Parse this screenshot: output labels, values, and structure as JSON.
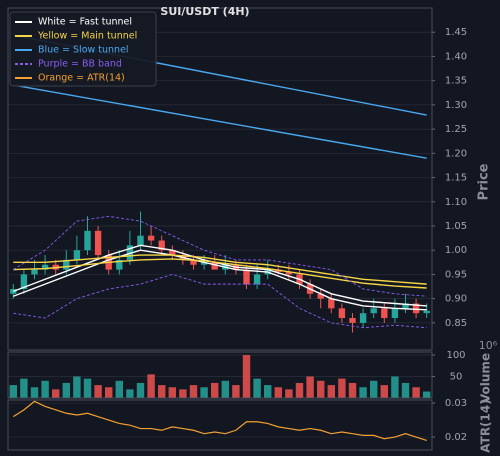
{
  "chart_data": {
    "type": "candlestick",
    "title": "SUI/USDT (4H)",
    "ylabel": "Price",
    "ylim": [
      0.794,
      1.5
    ],
    "yticks": [
      0.85,
      {
        "value": 0.9,
        "label": "0.90"
      },
      0.95,
      {
        "value": 1.0,
        "label": "1.00"
      },
      1.05,
      {
        "value": 1.1,
        "label": "1.10"
      },
      1.15,
      {
        "value": 1.2,
        "label": "1.20"
      },
      1.25,
      {
        "value": 1.3,
        "label": "1.30"
      },
      1.35,
      {
        "value": 1.4,
        "label": "1.40"
      },
      1.45
    ],
    "grid": true,
    "up_color": "#26a69a",
    "down_color": "#ef5350",
    "candles": {
      "open": [
        0.91,
        0.92,
        0.95,
        0.96,
        0.97,
        0.96,
        0.98,
        1.0,
        1.04,
        0.99,
        0.96,
        0.98,
        1.01,
        1.03,
        1.02,
        1.0,
        0.99,
        0.98,
        0.97,
        0.975,
        0.96,
        0.97,
        0.96,
        0.93,
        0.95,
        0.96,
        0.955,
        0.95,
        0.93,
        0.91,
        0.9,
        0.88,
        0.86,
        0.85,
        0.87,
        0.88,
        0.86,
        0.88,
        0.89,
        0.87
      ],
      "high": [
        0.93,
        0.96,
        0.98,
        0.99,
        0.98,
        1.0,
        1.03,
        1.07,
        1.05,
        1.0,
        1.0,
        1.04,
        1.08,
        1.05,
        1.03,
        1.01,
        1.0,
        0.99,
        0.99,
        0.99,
        0.99,
        0.98,
        0.97,
        0.97,
        0.98,
        0.97,
        0.97,
        0.96,
        0.94,
        0.92,
        0.91,
        0.89,
        0.87,
        0.88,
        0.9,
        0.89,
        0.9,
        0.91,
        0.9,
        0.89
      ],
      "low": [
        0.9,
        0.91,
        0.94,
        0.95,
        0.95,
        0.95,
        0.97,
        0.99,
        0.98,
        0.95,
        0.95,
        0.97,
        1.0,
        1.01,
        0.99,
        0.98,
        0.97,
        0.96,
        0.96,
        0.96,
        0.95,
        0.95,
        0.92,
        0.92,
        0.94,
        0.95,
        0.94,
        0.92,
        0.9,
        0.88,
        0.87,
        0.85,
        0.83,
        0.84,
        0.86,
        0.85,
        0.85,
        0.87,
        0.86,
        0.86
      ],
      "close": [
        0.92,
        0.95,
        0.96,
        0.97,
        0.96,
        0.98,
        1.0,
        1.04,
        0.99,
        0.96,
        0.98,
        1.01,
        1.03,
        1.02,
        1.0,
        0.99,
        0.98,
        0.97,
        0.975,
        0.96,
        0.97,
        0.96,
        0.93,
        0.95,
        0.96,
        0.955,
        0.95,
        0.93,
        0.91,
        0.9,
        0.88,
        0.86,
        0.85,
        0.87,
        0.88,
        0.86,
        0.88,
        0.89,
        0.87,
        0.875
      ]
    },
    "series": [
      {
        "name": "White = Fast tunnel",
        "color": "#ffffff",
        "dash": false,
        "x": [
          0,
          3,
          6,
          9,
          12,
          15,
          18,
          21,
          24,
          27,
          30,
          33,
          36,
          39
        ],
        "upper": [
          0.915,
          0.94,
          0.965,
          0.99,
          1.01,
          1.0,
          0.98,
          0.965,
          0.96,
          0.94,
          0.91,
          0.895,
          0.89,
          0.885
        ],
        "lower": [
          0.905,
          0.93,
          0.955,
          0.98,
          1.0,
          0.99,
          0.975,
          0.96,
          0.955,
          0.93,
          0.9,
          0.885,
          0.88,
          0.877
        ]
      },
      {
        "name": "Yellow = Main tunnel",
        "color": "#f5d547",
        "dash": false,
        "x": [
          0,
          3,
          6,
          9,
          12,
          15,
          18,
          21,
          24,
          27,
          30,
          33,
          36,
          39
        ],
        "upper": [
          0.975,
          0.975,
          0.98,
          0.985,
          0.99,
          0.99,
          0.985,
          0.975,
          0.97,
          0.96,
          0.95,
          0.94,
          0.935,
          0.93
        ],
        "lower": [
          0.96,
          0.962,
          0.968,
          0.975,
          0.98,
          0.982,
          0.978,
          0.97,
          0.962,
          0.952,
          0.942,
          0.932,
          0.926,
          0.922
        ]
      },
      {
        "name": "Blue = Slow tunnel",
        "color": "#4aa8f0",
        "dash": false,
        "x": [
          0,
          39
        ],
        "upper": [
          1.444,
          1.279
        ],
        "lower": [
          1.341,
          1.19
        ]
      },
      {
        "name": "Purple = BB band",
        "color": "#8a5cf0",
        "dash": true,
        "x": [
          0,
          3,
          6,
          9,
          12,
          15,
          18,
          21,
          24,
          27,
          30,
          33,
          36,
          39
        ],
        "upper": [
          0.96,
          1.0,
          1.06,
          1.07,
          1.06,
          1.03,
          1.0,
          0.98,
          0.98,
          0.97,
          0.96,
          0.92,
          0.91,
          0.905
        ],
        "lower": [
          0.87,
          0.86,
          0.9,
          0.92,
          0.93,
          0.95,
          0.93,
          0.93,
          0.93,
          0.88,
          0.85,
          0.84,
          0.845,
          0.84
        ]
      }
    ],
    "volume": {
      "label": "Volume",
      "offset_label": "10⁶",
      "ylim": [
        0,
        107
      ],
      "yticks": [
        50,
        100
      ],
      "values": [
        30,
        45,
        25,
        40,
        20,
        35,
        50,
        45,
        30,
        25,
        40,
        20,
        35,
        55,
        30,
        25,
        20,
        30,
        25,
        35,
        40,
        30,
        100,
        45,
        30,
        25,
        20,
        35,
        50,
        40,
        30,
        45,
        35,
        25,
        40,
        30,
        50,
        35,
        25,
        15
      ]
    },
    "atr": {
      "name": "Orange = ATR(14)",
      "label": "ATR(14)",
      "color": "#f5a030",
      "ylim": [
        0.0162,
        0.0309
      ],
      "yticks": [
        0.02,
        0.03
      ],
      "values": [
        0.026,
        0.028,
        0.0305,
        0.029,
        0.028,
        0.027,
        0.0265,
        0.027,
        0.026,
        0.025,
        0.024,
        0.0235,
        0.0225,
        0.0225,
        0.022,
        0.023,
        0.0225,
        0.022,
        0.021,
        0.0215,
        0.021,
        0.022,
        0.0245,
        0.0245,
        0.024,
        0.023,
        0.0225,
        0.022,
        0.0225,
        0.022,
        0.021,
        0.0215,
        0.021,
        0.0205,
        0.0205,
        0.0195,
        0.02,
        0.021,
        0.02,
        0.019
      ]
    }
  }
}
